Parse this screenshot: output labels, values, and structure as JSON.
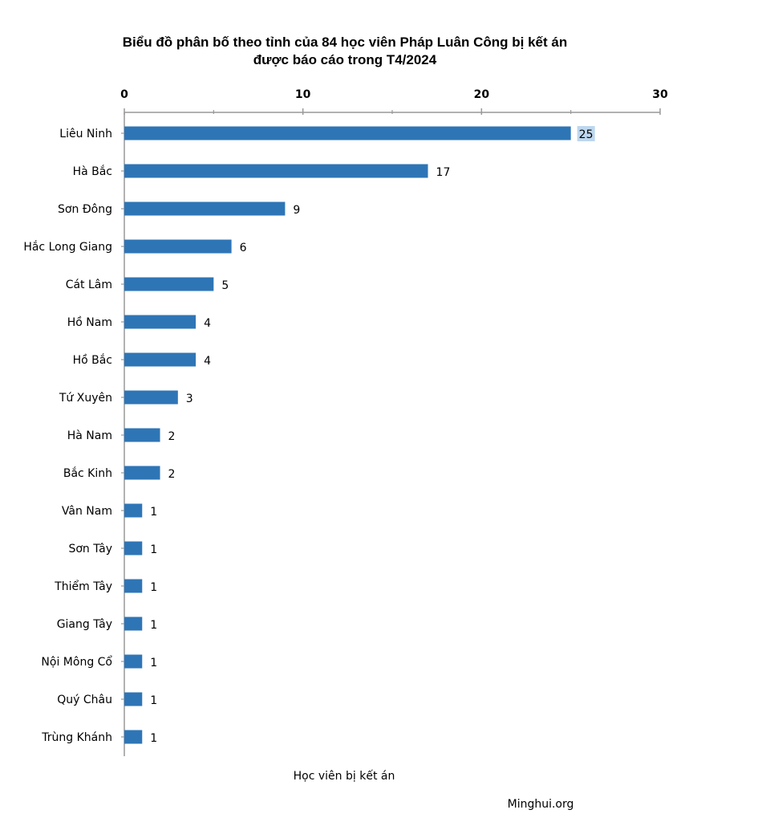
{
  "chart_data": {
    "type": "bar",
    "orientation": "horizontal",
    "title_lines": [
      "Biểu đồ phân bố theo tỉnh của 84 học viên Pháp Luân Công  bị kết án",
      "được báo cáo trong T4/2024"
    ],
    "categories": [
      "Liêu Ninh",
      "Hà Bắc",
      "Sơn Đông",
      "Hắc Long Giang",
      "Cát Lâm",
      "Hồ Nam",
      "Hồ Bắc",
      "Tứ Xuyên",
      "Hà Nam",
      "Bắc Kinh",
      "Vân Nam",
      "Sơn Tây",
      "Thiểm Tây",
      "Giang Tây",
      "Nội Mông Cổ",
      "Quý Châu",
      "Trùng Khánh"
    ],
    "values": [
      25,
      17,
      9,
      6,
      5,
      4,
      4,
      3,
      2,
      2,
      1,
      1,
      1,
      1,
      1,
      1,
      1
    ],
    "xlabel": "Học viên bị kết án",
    "ylabel": "",
    "xlim": [
      0,
      30
    ],
    "xticks": [
      0,
      10,
      20,
      30
    ],
    "xaxis_position": "top",
    "grid": false,
    "legend": "none",
    "bar_color": "#2e75b6",
    "highlight_color": "#bdd7ee",
    "highlighted_value_index": 0,
    "source": "Minghui.org"
  }
}
